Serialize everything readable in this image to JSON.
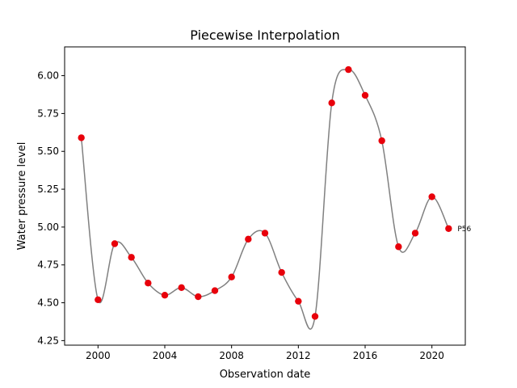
{
  "chart_data": {
    "type": "line",
    "title": "Piecewise Interpolation",
    "xlabel": "Observation date",
    "ylabel": "Water pressure level",
    "xlim": [
      1998.0,
      2022.0
    ],
    "ylim": [
      4.22,
      6.19
    ],
    "x_ticks": [
      2000,
      2004,
      2008,
      2012,
      2016,
      2020
    ],
    "y_ticks": [
      4.25,
      4.5,
      4.75,
      5.0,
      5.25,
      5.5,
      5.75,
      6.0
    ],
    "y_tick_labels": [
      "4.25",
      "4.50",
      "4.75",
      "5.00",
      "5.25",
      "5.50",
      "5.75",
      "6.00"
    ],
    "grid": false,
    "series": [
      {
        "style": "smooth interpolated line with markers",
        "line_color": "#808080",
        "marker_color": "#e8000b",
        "x": [
          1999,
          2000,
          2001,
          2002,
          2003,
          2004,
          2005,
          2006,
          2007,
          2008,
          2009,
          2010,
          2011,
          2012,
          2013,
          2014,
          2015,
          2016,
          2017,
          2018,
          2019,
          2020,
          2021
        ],
        "y": [
          5.59,
          4.52,
          4.89,
          4.8,
          4.63,
          4.55,
          4.6,
          4.54,
          4.58,
          4.67,
          4.92,
          4.96,
          4.7,
          4.51,
          4.41,
          5.82,
          6.04,
          5.87,
          5.57,
          4.87,
          4.96,
          5.2,
          4.99
        ]
      }
    ],
    "annotations": [
      {
        "text": "P56",
        "x": 2021,
        "y": 4.99
      }
    ]
  }
}
